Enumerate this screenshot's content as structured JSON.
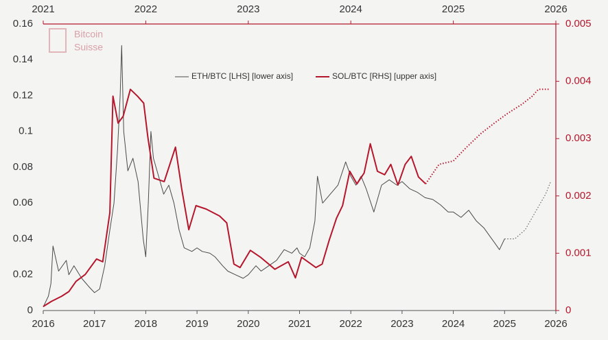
{
  "chart_data": {
    "type": "line",
    "logo": [
      "Bitcoin",
      "Suisse"
    ],
    "xlim": [
      2016,
      2026
    ],
    "xticks": [
      2016,
      2017,
      2018,
      2019,
      2020,
      2021,
      2022,
      2023,
      2024,
      2025,
      2026
    ],
    "x2lim": [
      2021,
      2026
    ],
    "x2ticks": [
      2021,
      2022,
      2023,
      2024,
      2025,
      2026
    ],
    "ylim": [
      0,
      0.16
    ],
    "yticks": [
      0,
      0.02,
      0.04,
      0.06,
      0.08,
      0.1,
      0.12,
      0.14,
      0.16
    ],
    "y2lim": [
      0,
      0.005
    ],
    "y2ticks": [
      0,
      0.001,
      0.002,
      0.003,
      0.004,
      0.005
    ],
    "series": [
      {
        "name": "ETH/BTC [LHS] [lower axis]",
        "color": "#4a4a4a",
        "axis": "y",
        "xaxis": "x",
        "x": [
          2016.0,
          2016.1,
          2016.15,
          2016.19,
          2016.3,
          2016.45,
          2016.5,
          2016.6,
          2016.75,
          2016.9,
          2017.0,
          2017.1,
          2017.2,
          2017.3,
          2017.38,
          2017.45,
          2017.5,
          2017.53,
          2017.57,
          2017.65,
          2017.75,
          2017.85,
          2017.95,
          2018.0,
          2018.05,
          2018.1,
          2018.15,
          2018.25,
          2018.35,
          2018.45,
          2018.55,
          2018.65,
          2018.75,
          2018.9,
          2019.0,
          2019.1,
          2019.25,
          2019.35,
          2019.5,
          2019.6,
          2019.75,
          2019.9,
          2020.0,
          2020.15,
          2020.25,
          2020.4,
          2020.55,
          2020.7,
          2020.85,
          2020.95,
          2021.0,
          2021.1,
          2021.2,
          2021.3,
          2021.35,
          2021.45,
          2021.6,
          2021.75,
          2021.9,
          2022.0,
          2022.1,
          2022.2,
          2022.3,
          2022.45,
          2022.6,
          2022.75,
          2022.9,
          2023.0,
          2023.15,
          2023.3,
          2023.45,
          2023.6,
          2023.75,
          2023.9,
          2024.0,
          2024.15,
          2024.3,
          2024.45,
          2024.6,
          2024.7,
          2024.8,
          2024.9,
          2025.0,
          2025.2,
          2025.4,
          2025.6,
          2025.8,
          2025.9
        ],
        "values": [
          0.002,
          0.008,
          0.015,
          0.036,
          0.022,
          0.028,
          0.02,
          0.025,
          0.018,
          0.013,
          0.01,
          0.012,
          0.025,
          0.045,
          0.06,
          0.09,
          0.12,
          0.148,
          0.1,
          0.078,
          0.085,
          0.072,
          0.04,
          0.03,
          0.06,
          0.1,
          0.085,
          0.075,
          0.065,
          0.07,
          0.06,
          0.045,
          0.035,
          0.033,
          0.035,
          0.033,
          0.032,
          0.03,
          0.025,
          0.022,
          0.02,
          0.018,
          0.02,
          0.025,
          0.022,
          0.025,
          0.028,
          0.034,
          0.032,
          0.035,
          0.032,
          0.03,
          0.035,
          0.05,
          0.075,
          0.06,
          0.065,
          0.07,
          0.083,
          0.075,
          0.07,
          0.075,
          0.068,
          0.055,
          0.07,
          0.073,
          0.07,
          0.072,
          0.068,
          0.066,
          0.063,
          0.062,
          0.059,
          0.055,
          0.055,
          0.052,
          0.056,
          0.05,
          0.046,
          0.042,
          0.038,
          0.034,
          0.04,
          null,
          null,
          null,
          null,
          null
        ],
        "dotted_values": [
          null,
          null,
          null,
          null,
          null,
          null,
          null,
          null,
          null,
          null,
          null,
          null,
          null,
          null,
          null,
          null,
          null,
          null,
          null,
          null,
          null,
          null,
          null,
          null,
          null,
          null,
          null,
          null,
          null,
          null,
          null,
          null,
          null,
          null,
          null,
          null,
          null,
          null,
          null,
          null,
          null,
          null,
          null,
          null,
          null,
          null,
          null,
          null,
          null,
          null,
          null,
          null,
          null,
          null,
          null,
          null,
          null,
          null,
          null,
          null,
          null,
          null,
          null,
          null,
          null,
          null,
          null,
          null,
          null,
          null,
          null,
          null,
          null,
          null,
          null,
          null,
          null,
          null,
          null,
          null,
          null,
          null,
          0.04,
          0.04,
          0.045,
          0.055,
          0.065,
          0.072
        ]
      },
      {
        "name": "SOL/BTC [RHS] [upper axis]",
        "color": "#b5162b",
        "axis": "y2",
        "xaxis": "x2",
        "x": [
          2021.0,
          2021.08,
          2021.18,
          2021.25,
          2021.32,
          2021.41,
          2021.52,
          2021.58,
          2021.65,
          2021.68,
          2021.73,
          2021.78,
          2021.85,
          2021.92,
          2021.98,
          2022.02,
          2022.08,
          2022.18,
          2022.29,
          2022.35,
          2022.42,
          2022.49,
          2022.59,
          2022.72,
          2022.79,
          2022.86,
          2022.92,
          2023.02,
          2023.12,
          2023.26,
          2023.39,
          2023.46,
          2023.52,
          2023.66,
          2023.72,
          2023.79,
          2023.86,
          2023.92,
          2023.99,
          2024.06,
          2024.13,
          2024.19,
          2024.26,
          2024.33,
          2024.39,
          2024.46,
          2024.53,
          2024.59,
          2024.66,
          2024.73,
          2024.86,
          2025.0,
          2025.13,
          2025.27,
          2025.4,
          2025.53,
          2025.67,
          2025.77,
          2025.83,
          2025.93
        ],
        "values": [
          7e-05,
          0.00016,
          0.00025,
          0.00033,
          0.00051,
          0.00063,
          0.0009,
          0.00085,
          0.00171,
          0.00374,
          0.00327,
          0.00339,
          0.00386,
          0.00374,
          0.00362,
          0.00303,
          0.00231,
          0.00225,
          0.00285,
          0.00213,
          0.00141,
          0.00183,
          0.00177,
          0.00165,
          0.00153,
          0.00081,
          0.00075,
          0.00105,
          0.00093,
          0.00072,
          0.00085,
          0.00057,
          0.00093,
          0.00075,
          0.00081,
          0.00123,
          0.00161,
          0.00183,
          0.00243,
          0.00221,
          0.0024,
          0.00291,
          0.00243,
          0.00237,
          0.00255,
          0.00219,
          0.00255,
          0.00269,
          0.00233,
          0.00221,
          null,
          null,
          null,
          null,
          null,
          null,
          null,
          null,
          null,
          null
        ],
        "dotted_values": [
          null,
          null,
          null,
          null,
          null,
          null,
          null,
          null,
          null,
          null,
          null,
          null,
          null,
          null,
          null,
          null,
          null,
          null,
          null,
          null,
          null,
          null,
          null,
          null,
          null,
          null,
          null,
          null,
          null,
          null,
          null,
          null,
          null,
          null,
          null,
          null,
          null,
          null,
          null,
          null,
          null,
          null,
          null,
          null,
          null,
          null,
          null,
          null,
          null,
          0.00221,
          0.00255,
          0.00261,
          0.00285,
          0.00309,
          0.00327,
          0.00344,
          0.0036,
          0.00374,
          0.00386,
          0.00386
        ]
      }
    ]
  }
}
